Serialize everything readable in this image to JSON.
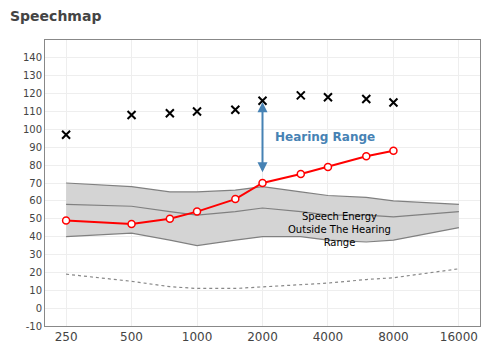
{
  "chart_data": {
    "type": "line",
    "title": "Speechmap",
    "log": "x",
    "grid": true,
    "xlim": [
      200,
      20000
    ],
    "xticks": [
      250,
      500,
      1000,
      2000,
      4000,
      8000,
      16000
    ],
    "ylim": [
      -10,
      150
    ],
    "yticks": [
      -10,
      0,
      10,
      20,
      30,
      40,
      50,
      60,
      70,
      80,
      90,
      100,
      110,
      120,
      130,
      140
    ],
    "series": [
      {
        "type": "band",
        "color": "#d4d4d4",
        "x": [
          250,
          500,
          750,
          1000,
          1500,
          2000,
          3000,
          4000,
          6000,
          8000,
          16000
        ],
        "lower": [
          40,
          42,
          38,
          35,
          38,
          40,
          40,
          38,
          37,
          38,
          45
        ],
        "upper": [
          70,
          68,
          65,
          65,
          66,
          68,
          65,
          63,
          62,
          60,
          58
        ]
      },
      {
        "type": "line",
        "color": "#808080",
        "line_style": "solid",
        "x": [
          250,
          500,
          750,
          1000,
          1500,
          2000,
          3000,
          4000,
          6000,
          8000,
          16000
        ],
        "values": [
          70,
          68,
          65,
          65,
          66,
          68,
          65,
          63,
          62,
          60,
          58
        ]
      },
      {
        "type": "line",
        "color": "#808080",
        "line_style": "solid",
        "x": [
          250,
          500,
          750,
          1000,
          1500,
          2000,
          3000,
          4000,
          6000,
          8000,
          16000
        ],
        "values": [
          58,
          57,
          54,
          52,
          54,
          56,
          54,
          52,
          52,
          51,
          54
        ]
      },
      {
        "type": "line",
        "color": "#808080",
        "line_style": "solid",
        "x": [
          250,
          500,
          750,
          1000,
          1500,
          2000,
          3000,
          4000,
          6000,
          8000,
          16000
        ],
        "values": [
          40,
          42,
          38,
          35,
          38,
          40,
          40,
          38,
          37,
          38,
          45
        ]
      },
      {
        "type": "line",
        "color": "#888888",
        "line_style": "dotted",
        "x": [
          250,
          500,
          750,
          1000,
          1500,
          2000,
          3000,
          4000,
          6000,
          8000,
          16000
        ],
        "values": [
          19,
          15,
          12,
          11,
          11,
          12,
          13,
          14,
          16,
          17,
          22
        ]
      },
      {
        "type": "line",
        "color": "red",
        "line_style": "solid",
        "marker": "open_circle",
        "x": [
          250,
          500,
          750,
          1000,
          1500,
          2000,
          3000,
          4000,
          6000,
          8000
        ],
        "values": [
          49,
          47,
          50,
          54,
          61,
          70,
          75,
          79,
          85,
          88
        ]
      },
      {
        "type": "scatter",
        "color": "black",
        "line_style": "none",
        "marker": "x",
        "x": [
          250,
          500,
          750,
          1000,
          1500,
          2000,
          3000,
          4000,
          6000,
          8000
        ],
        "values": [
          97,
          108,
          109,
          110,
          111,
          116,
          119,
          118,
          117,
          115
        ]
      }
    ],
    "annotations": [
      {
        "text": "Hearing Range",
        "color": "steelblue",
        "arrow": "double",
        "x": 2000,
        "y_from": 116,
        "y_to": 76
      },
      {
        "text": "Speech Energy\nOutside The Hearing\nRange",
        "color": "black",
        "x": 4500,
        "y": 44
      }
    ]
  }
}
